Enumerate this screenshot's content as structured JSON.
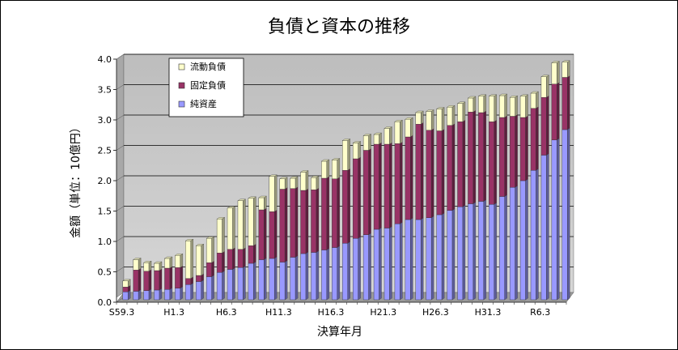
{
  "chart_data": {
    "type": "bar",
    "stacked": true,
    "title": "負債と資本の推移",
    "xlabel": "決算年月",
    "ylabel": "金額（単位：10億円）",
    "ylim": [
      0,
      4.0
    ],
    "yticks": [
      "0.0",
      "0.5",
      "1.0",
      "1.5",
      "2.0",
      "2.5",
      "3.0",
      "3.5",
      "4.0"
    ],
    "grid": true,
    "legend_position": "top-left",
    "xtick_labels": [
      {
        "index": 0,
        "label": "S59.3"
      },
      {
        "index": 5,
        "label": "H1.3"
      },
      {
        "index": 10,
        "label": "H6.3"
      },
      {
        "index": 15,
        "label": "H11.3"
      },
      {
        "index": 20,
        "label": "H16.3"
      },
      {
        "index": 25,
        "label": "H21.3"
      },
      {
        "index": 30,
        "label": "H26.3"
      },
      {
        "index": 35,
        "label": "H31.3"
      },
      {
        "index": 40,
        "label": "R6.3"
      }
    ],
    "series": [
      {
        "name": "純資産",
        "color": "#9999ff",
        "values": [
          0.13,
          0.14,
          0.15,
          0.16,
          0.17,
          0.19,
          0.25,
          0.3,
          0.38,
          0.45,
          0.5,
          0.53,
          0.6,
          0.66,
          0.68,
          0.62,
          0.7,
          0.76,
          0.78,
          0.82,
          0.86,
          0.93,
          1.01,
          1.07,
          1.16,
          1.18,
          1.25,
          1.32,
          1.32,
          1.35,
          1.4,
          1.47,
          1.53,
          1.58,
          1.62,
          1.57,
          1.7,
          1.85,
          1.96,
          2.13,
          2.38,
          2.63,
          2.8
        ]
      },
      {
        "name": "固定負債",
        "color": "#993366",
        "values": [
          0.08,
          0.35,
          0.32,
          0.32,
          0.35,
          0.34,
          0.1,
          0.1,
          0.23,
          0.32,
          0.33,
          0.3,
          0.29,
          0.82,
          0.77,
          1.2,
          1.13,
          1.04,
          1.03,
          1.18,
          1.13,
          1.2,
          1.31,
          1.39,
          1.4,
          1.38,
          1.32,
          1.36,
          1.57,
          1.44,
          1.38,
          1.4,
          1.4,
          1.51,
          1.46,
          1.36,
          1.3,
          1.17,
          1.04,
          1.02,
          0.95,
          0.92,
          0.86
        ]
      },
      {
        "name": "流動負債",
        "color": "#ffffcc",
        "values": [
          0.1,
          0.17,
          0.14,
          0.12,
          0.16,
          0.2,
          0.62,
          0.49,
          0.4,
          0.56,
          0.68,
          0.8,
          0.78,
          0.2,
          0.58,
          0.17,
          0.17,
          0.3,
          0.2,
          0.28,
          0.31,
          0.49,
          0.26,
          0.24,
          0.16,
          0.26,
          0.36,
          0.29,
          0.19,
          0.31,
          0.36,
          0.3,
          0.3,
          0.23,
          0.27,
          0.42,
          0.36,
          0.31,
          0.35,
          0.25,
          0.34,
          0.35,
          0.25
        ]
      }
    ]
  }
}
